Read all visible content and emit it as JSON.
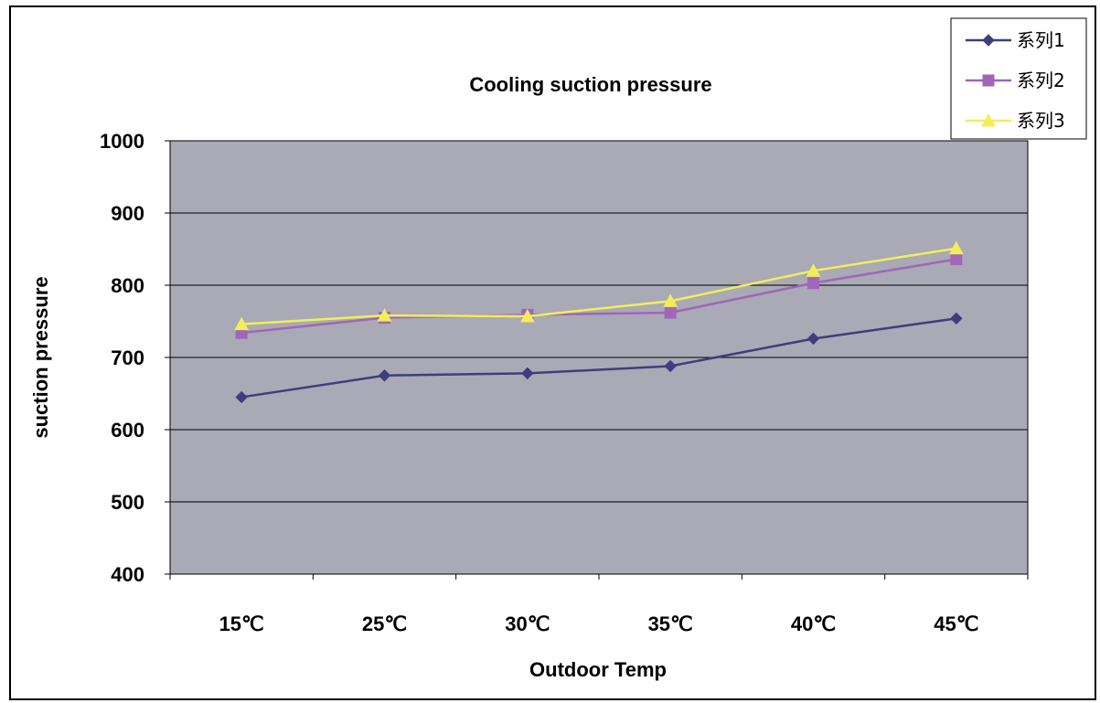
{
  "chart_data": {
    "type": "line",
    "title": "Cooling suction pressure",
    "xlabel": "Outdoor Temp",
    "ylabel": "suction pressure",
    "categories": [
      "15℃",
      "25℃",
      "30℃",
      "35℃",
      "40℃",
      "45℃"
    ],
    "ylim": [
      400,
      1000
    ],
    "yticks": [
      400,
      500,
      600,
      700,
      800,
      900,
      1000
    ],
    "grid": true,
    "legend_position": "top-right",
    "plot_background": "#A9AAB5",
    "series": [
      {
        "name": "系列1",
        "color": "#3F3D7D",
        "marker": "diamond",
        "values": [
          645,
          675,
          678,
          688,
          726,
          754
        ]
      },
      {
        "name": "系列2",
        "color": "#A066B8",
        "marker": "square",
        "values": [
          734,
          755,
          759,
          762,
          803,
          836
        ]
      },
      {
        "name": "系列3",
        "color": "#F2EE5A",
        "marker": "triangle",
        "values": [
          746,
          758,
          757,
          778,
          820,
          851
        ]
      }
    ]
  }
}
